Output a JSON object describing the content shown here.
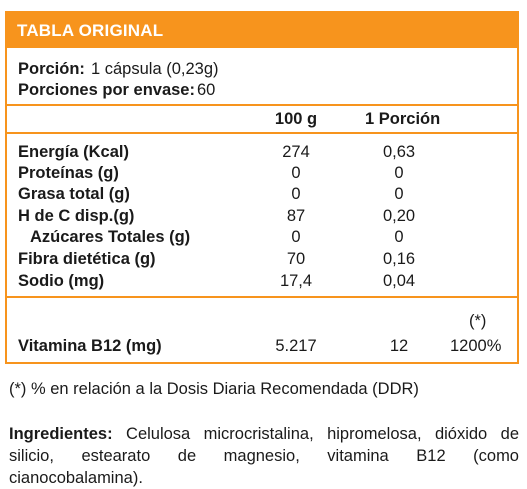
{
  "header": {
    "title": "TABLA ORIGINAL"
  },
  "serving": {
    "portion_label": "Porción:",
    "portion_value": "1 cápsula (0,23g)",
    "servings_label": "Porciones por envase:",
    "servings_value": "60"
  },
  "columns": {
    "per100": "100 g",
    "perPortion": "1 Porción"
  },
  "rows": [
    {
      "label": "Energía (Kcal)",
      "per100": "274",
      "perPortion": "0,63"
    },
    {
      "label": "Proteínas (g)",
      "per100": "0",
      "perPortion": "0"
    },
    {
      "label": "Grasa total (g)",
      "per100": "0",
      "perPortion": "0"
    },
    {
      "label": "H de C disp.(g)",
      "per100": "87",
      "perPortion": "0,20"
    },
    {
      "label": "Azúcares Totales (g)",
      "per100": "0",
      "perPortion": "0"
    },
    {
      "label": "Fibra dietética (g)",
      "per100": "70",
      "perPortion": "0,16"
    },
    {
      "label": "Sodio (mg)",
      "per100": "17,4",
      "perPortion": "0,04"
    }
  ],
  "vitamin": {
    "label": "Vitamina B12 (mg)",
    "per100": "5.217",
    "perPortion": "12",
    "ddr_mark": "(*)",
    "ddr": "1200%"
  },
  "footnote": "(*) % en relación a la Dosis Diaria Recomendada (DDR)",
  "ingredients": {
    "label": "Ingredientes:",
    "text": "Celulosa microcristalina, hipromelosa, dióxido de silicio, estearato de magnesio, vitamina B12 (como cianocobalamina)."
  }
}
